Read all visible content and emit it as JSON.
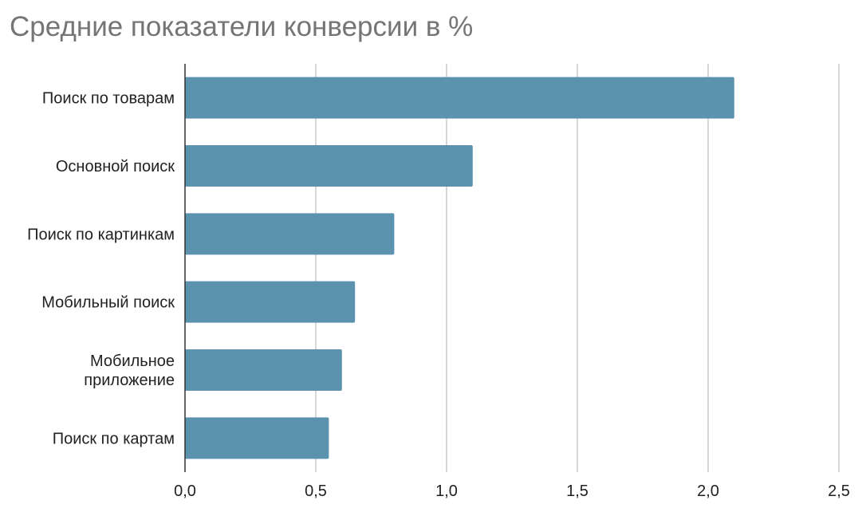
{
  "chart_data": {
    "type": "bar",
    "orientation": "horizontal",
    "title": "Средние показатели конверсии в %",
    "categories": [
      [
        "Поиск по товарам"
      ],
      [
        "Основной поиск"
      ],
      [
        "Поиск по картинкам"
      ],
      [
        "Мобильный поиск"
      ],
      [
        "Мобильное",
        "приложение"
      ],
      [
        "Поиск по картам"
      ]
    ],
    "values": [
      2.1,
      1.1,
      0.8,
      0.65,
      0.6,
      0.55
    ],
    "xlim": [
      0,
      2.5
    ],
    "xticks": [
      {
        "value": 0,
        "label": "0,0"
      },
      {
        "value": 0.5,
        "label": "0,5"
      },
      {
        "value": 1.0,
        "label": "1,0"
      },
      {
        "value": 1.5,
        "label": "1,5"
      },
      {
        "value": 2.0,
        "label": "2,0"
      },
      {
        "value": 2.5,
        "label": "2,5"
      }
    ],
    "grid": true,
    "legend": "none",
    "bar_color": "#5b93ae",
    "grid_color": "#cccccc",
    "axis_color": "#333333"
  }
}
